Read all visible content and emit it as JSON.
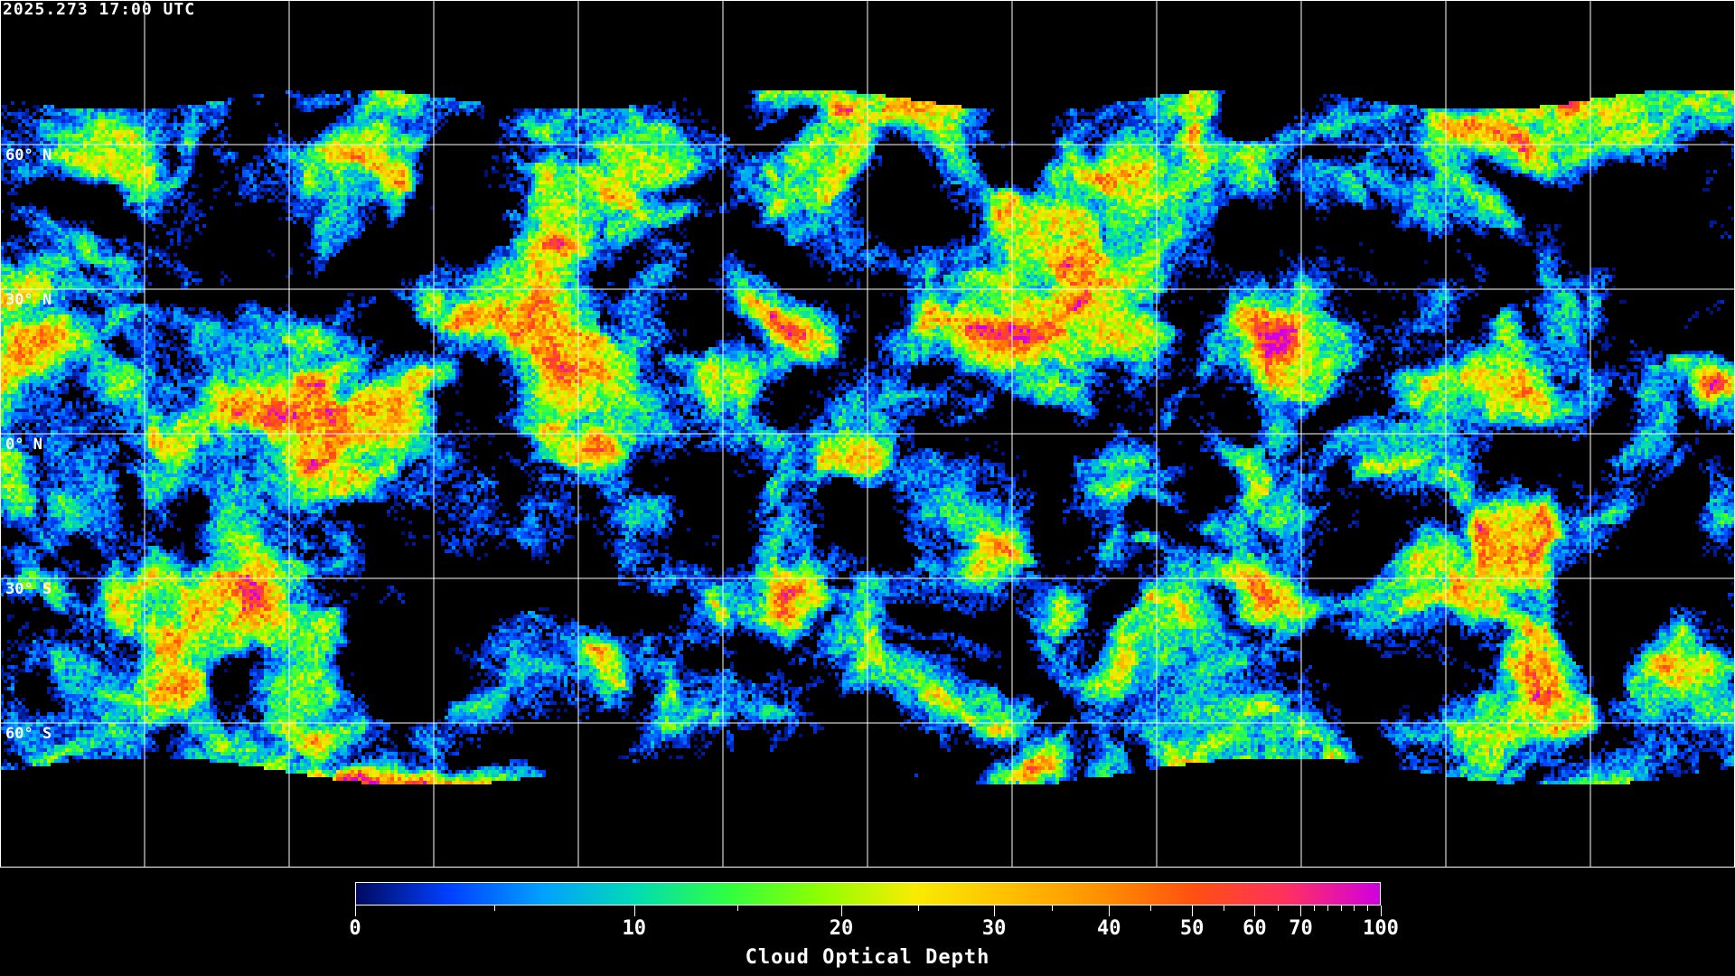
{
  "header": {
    "timestamp": "2025.273 17:00 UTC"
  },
  "map": {
    "projection": "equirectangular",
    "grid_spacing_deg": 30,
    "latitude_labels": [
      "60° N",
      "30° N",
      "0° N",
      "30° S",
      "60° S"
    ],
    "grid_color": "#ffffff",
    "coastline_color": "#ffffff",
    "background_color": "#000000"
  },
  "colorbar": {
    "title": "Cloud Optical Depth",
    "min": 0,
    "max": 100,
    "tick_labels": [
      "0",
      "10",
      "20",
      "30",
      "40",
      "50",
      "60",
      "70",
      "100"
    ],
    "tick_values": [
      0,
      10,
      20,
      30,
      40,
      50,
      60,
      70,
      100
    ],
    "minor_tick_values": [
      5,
      15,
      25,
      35,
      45,
      55,
      65,
      75,
      80,
      85,
      90,
      95
    ],
    "colors": [
      "#000a60",
      "#0040ff",
      "#00a0ff",
      "#00dcb4",
      "#30ff40",
      "#90ff00",
      "#f8ec00",
      "#ffc000",
      "#ff9000",
      "#ff5010",
      "#ff3060",
      "#d000e0"
    ]
  }
}
